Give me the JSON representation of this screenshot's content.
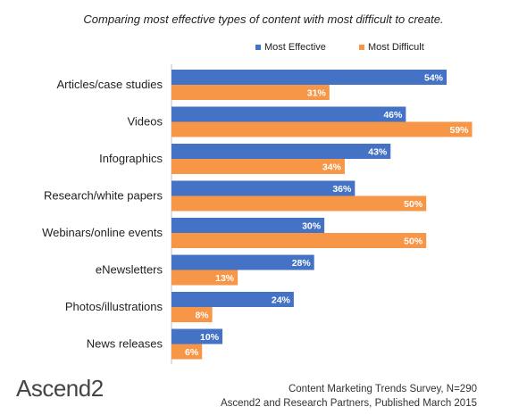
{
  "chart_data": {
    "type": "bar",
    "orientation": "horizontal",
    "title": "Comparing most effective types of content with most difficult to create.",
    "categories": [
      "Articles/case studies",
      "Videos",
      "Infographics",
      "Research/white papers",
      "Webinars/online events",
      "eNewsletters",
      "Photos/illustrations",
      "News releases"
    ],
    "series": [
      {
        "name": "Most Effective",
        "color": "#4472c4",
        "values": [
          54,
          46,
          43,
          36,
          30,
          28,
          24,
          10
        ]
      },
      {
        "name": "Most Difficult",
        "color": "#f79646",
        "values": [
          31,
          59,
          34,
          50,
          50,
          13,
          8,
          6
        ]
      }
    ],
    "value_suffix": "%",
    "xlim": [
      0,
      60
    ],
    "grid": false,
    "legend_position": "top-right"
  },
  "footer": {
    "source_line1": "Content Marketing Trends Survey, N=290",
    "source_line2": "Ascend2 and Research Partners, Published March 2015"
  },
  "logo": {
    "text": "Ascend2"
  }
}
